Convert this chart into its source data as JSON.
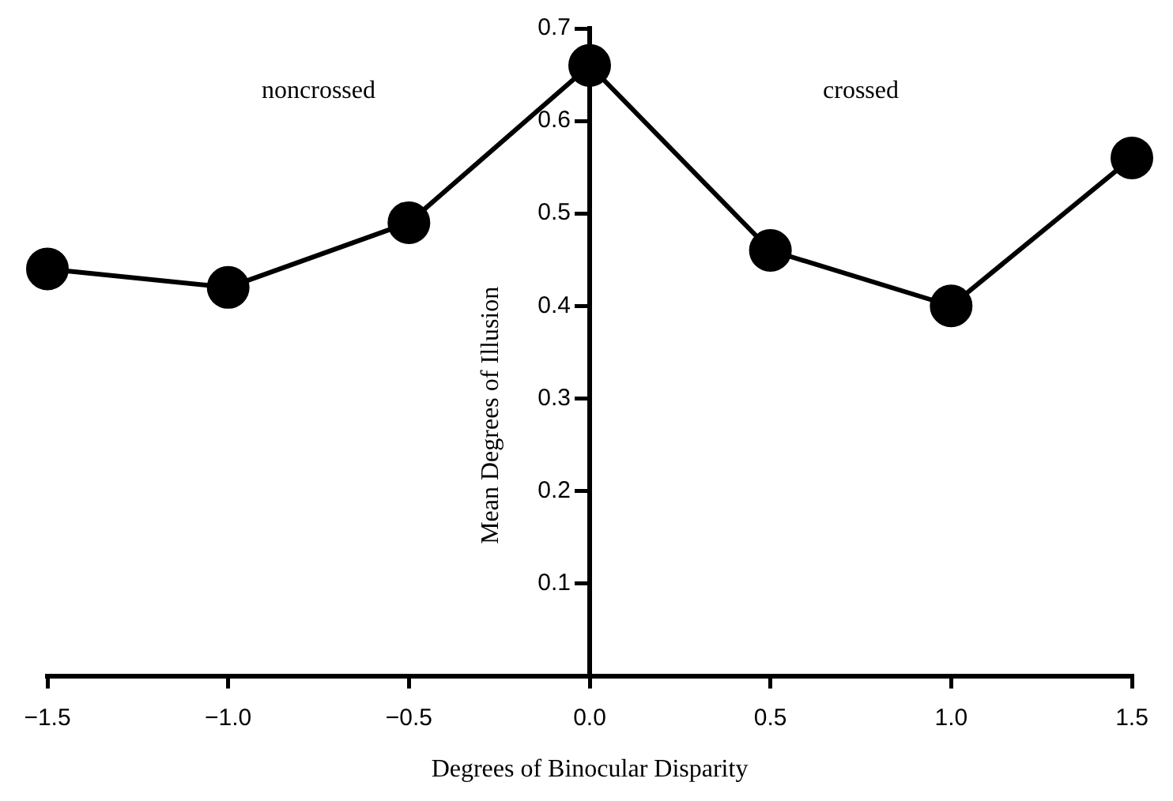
{
  "chart_data": {
    "type": "line",
    "xlabel": "Degrees of Binocular Disparity",
    "ylabel": "Mean Degrees of Illusion",
    "x": [
      -1.5,
      -1.0,
      -0.5,
      0.0,
      0.5,
      1.0,
      1.5
    ],
    "series": [
      {
        "color": "#000000",
        "values": [
          0.44,
          0.42,
          0.49,
          0.66,
          0.46,
          0.4,
          0.56
        ]
      }
    ],
    "xlim": [
      -1.5,
      1.5
    ],
    "xticks": [
      {
        "value": -1.5,
        "label": "−1.5"
      },
      {
        "value": -1.0,
        "label": "−1.0"
      },
      {
        "value": -0.5,
        "label": "−0.5"
      },
      {
        "value": 0,
        "label": "0.0"
      },
      0.5,
      {
        "value": 1.0,
        "label": "1.0"
      },
      1.5
    ],
    "ylim": [
      0,
      0.7
    ],
    "yticks": [
      0.1,
      0.2,
      0.3,
      0.4,
      0.5,
      0.6,
      0.7
    ],
    "annotations": [
      "noncrossed",
      "crossed"
    ],
    "marker": "circle",
    "line_style": "solid",
    "grid": false,
    "legend": false
  }
}
